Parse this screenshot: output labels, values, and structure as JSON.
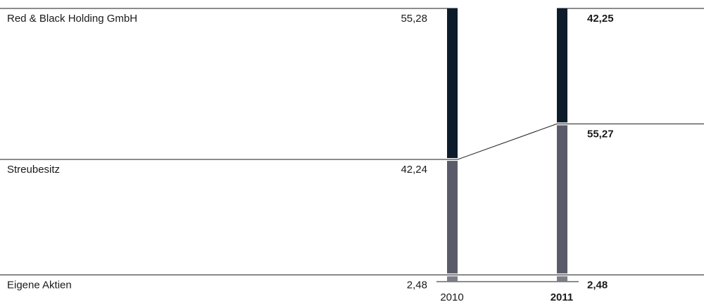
{
  "chart_data": {
    "type": "bar",
    "stacked": true,
    "categories": [
      "2010",
      "2011"
    ],
    "series": [
      {
        "name": "Red & Black Holding GmbH",
        "values": [
          55.28,
          42.25
        ],
        "labels": [
          "55,28",
          "42,25"
        ],
        "color": "#0c1c2a"
      },
      {
        "name": "Streubesitz",
        "values": [
          42.24,
          55.27
        ],
        "labels": [
          "42,24",
          "55,27"
        ],
        "color": "#5a5b6a"
      },
      {
        "name": "Eigene Aktien",
        "values": [
          2.48,
          2.48
        ],
        "labels": [
          "2,48",
          "2,48"
        ],
        "color": "#7d7e88"
      }
    ],
    "highlight_category": "2011",
    "ylim": [
      0,
      100
    ]
  }
}
